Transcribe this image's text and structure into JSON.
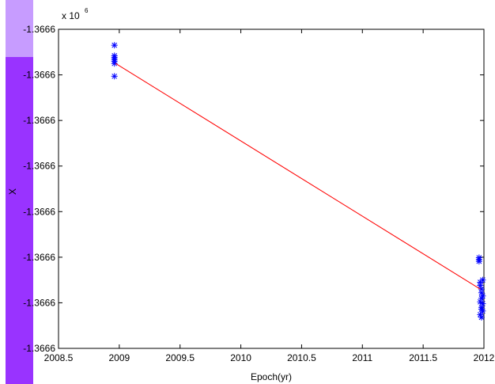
{
  "chart_data": {
    "type": "scatter",
    "xlabel": "Epoch(yr)",
    "ylabel": "X",
    "exponent_base": "x 10",
    "exponent_power": "6",
    "xlim": [
      2008.5,
      2012
    ],
    "ylim": [
      0,
      7
    ],
    "x_ticks": [
      2008.5,
      2009,
      2009.5,
      2010,
      2010.5,
      2011,
      2011.5,
      2012
    ],
    "x_tick_labels": [
      "2008.5",
      "2009",
      "2009.5",
      "2010",
      "2010.5",
      "2011",
      "2011.5",
      "2012"
    ],
    "y_ticks": [
      0,
      1,
      2,
      3,
      4,
      5,
      6,
      7
    ],
    "y_tick_labels": [
      "-1.3666",
      "-1.3666",
      "-1.3666",
      "-1.3666",
      "-1.3666",
      "-1.3666",
      "-1.3666",
      "-1.3666"
    ],
    "grid": false,
    "series": [
      {
        "marker": "*",
        "color": "#0000ff",
        "points": [
          [
            2008.96,
            6.65
          ],
          [
            2008.96,
            6.42
          ],
          [
            2008.96,
            6.38
          ],
          [
            2008.96,
            6.34
          ],
          [
            2008.96,
            6.3
          ],
          [
            2008.96,
            6.25
          ],
          [
            2008.96,
            5.97
          ],
          [
            2011.96,
            1.99
          ],
          [
            2011.96,
            1.95
          ],
          [
            2011.96,
            1.91
          ],
          [
            2011.97,
            1.45
          ],
          [
            2011.97,
            1.38
          ],
          [
            2011.98,
            1.3
          ],
          [
            2011.98,
            1.22
          ],
          [
            2011.98,
            1.1
          ],
          [
            2011.97,
            1.02
          ],
          [
            2011.99,
            0.98
          ],
          [
            2011.98,
            0.9
          ],
          [
            2011.99,
            0.82
          ],
          [
            2011.97,
            0.74
          ],
          [
            2011.98,
            0.68
          ],
          [
            2011.99,
            1.5
          ],
          [
            2011.99,
            1.15
          ],
          [
            2011.98,
            0.86
          ]
        ]
      },
      {
        "type": "line",
        "color": "#ff0000",
        "points": [
          [
            2008.97,
            6.25
          ],
          [
            2011.97,
            1.3
          ]
        ]
      }
    ]
  }
}
